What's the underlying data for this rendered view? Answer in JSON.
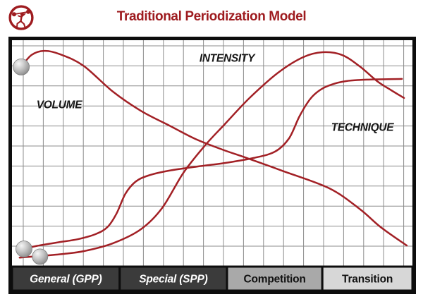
{
  "header": {
    "title": "Traditional Periodization Model",
    "logo_icon": "weightlifter-icon"
  },
  "colors": {
    "accent_red": "#9E1B1F",
    "curve_red": "#A22025",
    "grid_gray": "#8C8C8C",
    "frame_black": "#0D0D0D",
    "label_black": "#161616",
    "ball_rim": "#7E7E7E",
    "phase_dark": "#3B3B3B",
    "phase_medium": "#A9A9A9",
    "phase_light": "#D7D7D7",
    "phase_text_light": "#FFFFFF",
    "phase_text_dark": "#111111"
  },
  "chart_data": {
    "type": "line",
    "title": "Traditional Periodization Model",
    "x_axis": {
      "label": "",
      "categories": [
        "General (GPP)",
        "Special (SPP)",
        "Competition",
        "Transition"
      ]
    },
    "y_axis": {
      "label": "",
      "tick_labels_visible": false,
      "range_pct": [
        0,
        100
      ]
    },
    "grid": true,
    "legend_position": "inline-labels",
    "series": [
      {
        "key": "volume",
        "name": "VOLUME",
        "color": "#A22025",
        "label_center_pct": [
          11.8,
          71.7
        ],
        "points_pct": [
          [
            2.3,
            88.2
          ],
          [
            4.9,
            93.5
          ],
          [
            8.1,
            95.3
          ],
          [
            12.0,
            93.8
          ],
          [
            17.8,
            88.8
          ],
          [
            25.2,
            77.3
          ],
          [
            32.2,
            68.8
          ],
          [
            39.3,
            62.3
          ],
          [
            45.8,
            56.4
          ],
          [
            52.5,
            51.7
          ],
          [
            58.6,
            48.0
          ],
          [
            67.4,
            42.4
          ],
          [
            79.2,
            34.6
          ],
          [
            86.8,
            25.5
          ],
          [
            92.1,
            17.4
          ],
          [
            98.6,
            9.3
          ]
        ]
      },
      {
        "key": "intensity",
        "name": "INTENSITY",
        "color": "#A22025",
        "label_center_pct": [
          53.7,
          92.2
        ],
        "points_pct": [
          [
            1.9,
            4.0
          ],
          [
            7.0,
            4.7
          ],
          [
            12.9,
            5.6
          ],
          [
            18.1,
            6.9
          ],
          [
            25.2,
            10.3
          ],
          [
            32.2,
            16.5
          ],
          [
            37.5,
            25.9
          ],
          [
            42.8,
            41.4
          ],
          [
            48.1,
            53.3
          ],
          [
            53.3,
            63.2
          ],
          [
            59.5,
            74.8
          ],
          [
            66.5,
            85.7
          ],
          [
            72.7,
            92.5
          ],
          [
            77.6,
            94.7
          ],
          [
            82.4,
            93.5
          ],
          [
            86.8,
            88.5
          ],
          [
            91.2,
            81.9
          ],
          [
            94.7,
            77.9
          ],
          [
            97.9,
            74.5
          ]
        ]
      },
      {
        "key": "technique",
        "name": "TECHNIQUE",
        "color": "#A22025",
        "label_center_pct": [
          87.5,
          61.7
        ],
        "points_pct": [
          [
            3.0,
            7.8
          ],
          [
            5.8,
            9.0
          ],
          [
            11.1,
            10.6
          ],
          [
            16.4,
            12.1
          ],
          [
            20.8,
            14.3
          ],
          [
            23.8,
            17.4
          ],
          [
            26.1,
            23.4
          ],
          [
            28.3,
            32.1
          ],
          [
            30.8,
            37.4
          ],
          [
            34.0,
            40.2
          ],
          [
            39.3,
            42.4
          ],
          [
            46.3,
            44.2
          ],
          [
            53.3,
            45.8
          ],
          [
            60.4,
            48.0
          ],
          [
            65.7,
            50.8
          ],
          [
            69.2,
            56.7
          ],
          [
            71.8,
            66.4
          ],
          [
            74.5,
            74.1
          ],
          [
            77.1,
            78.2
          ],
          [
            79.8,
            80.4
          ],
          [
            83.3,
            81.9
          ],
          [
            88.6,
            82.6
          ],
          [
            97.4,
            82.9
          ]
        ]
      }
    ],
    "markers": [
      {
        "series": "volume",
        "shape": "sphere",
        "pos_pct": [
          2.3,
          88.2
        ],
        "radius_px": 11.5
      },
      {
        "series": "technique",
        "shape": "sphere",
        "pos_pct": [
          3.0,
          7.8
        ],
        "radius_px": 11.5
      },
      {
        "series": "intensity",
        "shape": "sphere",
        "pos_pct": [
          7.0,
          4.4
        ],
        "radius_px": 11.0
      }
    ],
    "phases": [
      {
        "label": "General (GPP)",
        "x_start_pct": 0,
        "x_end_pct": 26.9,
        "bg": "#3B3B3B",
        "text_color": "#FFFFFF",
        "italic": true
      },
      {
        "label": "Special (SPP)",
        "x_start_pct": 26.9,
        "x_end_pct": 53.7,
        "bg": "#3B3B3B",
        "text_color": "#FFFFFF",
        "italic": true
      },
      {
        "label": "Competition",
        "x_start_pct": 53.7,
        "x_end_pct": 77.5,
        "bg": "#A9A9A9",
        "text_color": "#111111",
        "italic": false
      },
      {
        "label": "Transition",
        "x_start_pct": 77.5,
        "x_end_pct": 100,
        "bg": "#D7D7D7",
        "text_color": "#111111",
        "italic": false
      }
    ]
  }
}
